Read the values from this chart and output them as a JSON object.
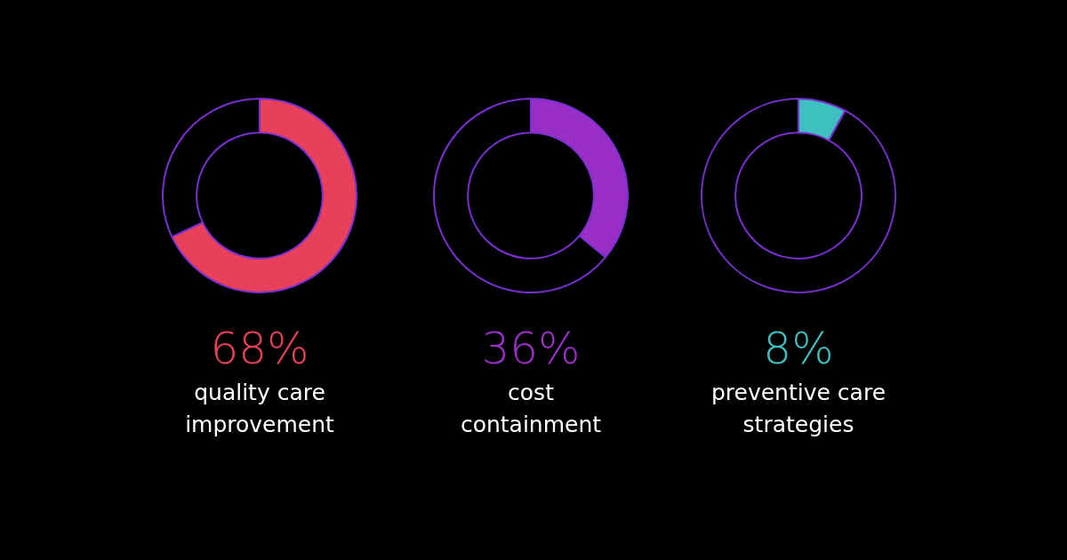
{
  "chart_data": [
    {
      "type": "donut",
      "title": "quality care improvement",
      "categories": [
        null,
        null
      ],
      "values": [
        68,
        32
      ],
      "colors": [
        "#e8405a",
        "#000000"
      ],
      "annotations": [
        "68%"
      ]
    },
    {
      "type": "donut",
      "title": "cost containment",
      "categories": [
        null,
        null
      ],
      "values": [
        36,
        64
      ],
      "colors": [
        "#9a2fc8",
        "#000000"
      ],
      "annotations": [
        "36%"
      ]
    },
    {
      "type": "donut",
      "title": "preventive care strategies",
      "categories": [
        null,
        null
      ],
      "values": [
        8,
        92
      ],
      "colors": [
        "#3fc0c0",
        "#000000"
      ],
      "annotations": [
        "8%"
      ]
    }
  ]
}
